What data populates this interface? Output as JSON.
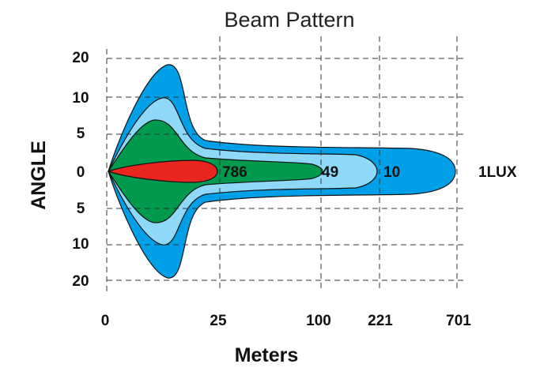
{
  "chart_data": {
    "type": "area",
    "title": "Beam Pattern",
    "xlabel": "Meters",
    "ylabel": "ANGLE",
    "x_ticks": [
      "0",
      "25",
      "100",
      "221",
      "701"
    ],
    "y_ticks_top": [
      "20",
      "10",
      "5",
      "0"
    ],
    "y_ticks_bottom": [
      "5",
      "10",
      "20"
    ],
    "grid": "dashed",
    "series": [
      {
        "name": "1LUX",
        "reach_m": 701,
        "color": "#00a0e8"
      },
      {
        "name": "10",
        "reach_m": 221,
        "color": "#8ed8f8"
      },
      {
        "name": "49",
        "reach_m": 100,
        "color": "#009a4e"
      },
      {
        "name": "786",
        "reach_m": 25,
        "color": "#e8251f"
      }
    ]
  }
}
